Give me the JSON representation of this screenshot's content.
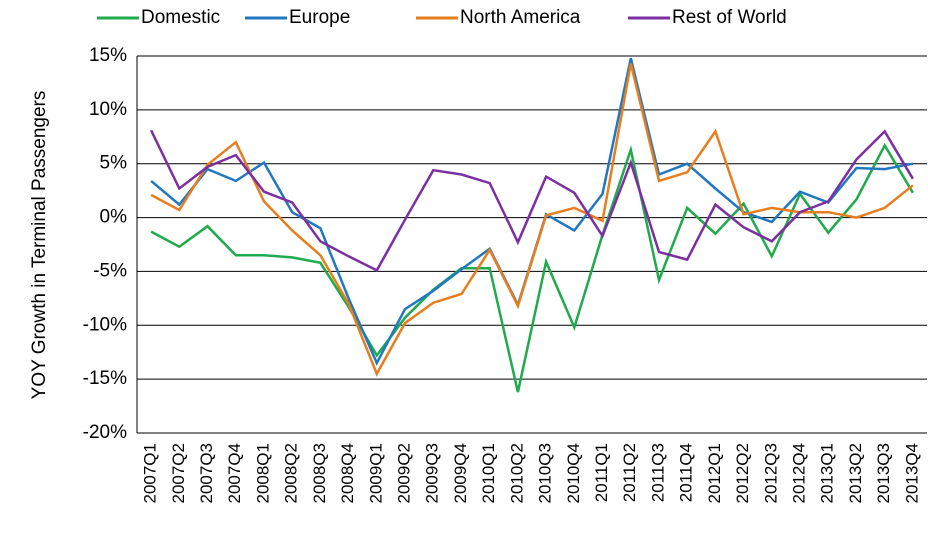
{
  "chart_data": {
    "type": "line",
    "y_label": "YOY Growth in Terminal Passengers",
    "categories": [
      "2007Q1",
      "2007Q2",
      "2007Q3",
      "2007Q4",
      "2008Q1",
      "2008Q2",
      "2008Q3",
      "2008Q4",
      "2009Q1",
      "2009Q2",
      "2009Q3",
      "2009Q4",
      "2010Q1",
      "2010Q2",
      "2010Q3",
      "2010Q4",
      "2011Q1",
      "2011Q2",
      "2011Q3",
      "2011Q4",
      "2012Q1",
      "2012Q2",
      "2012Q3",
      "2012Q4",
      "2013Q1",
      "2013Q2",
      "2013Q3",
      "2013Q4"
    ],
    "series": [
      {
        "name": "Domestic",
        "color": "#1faa4b",
        "values": [
          -1.3,
          -2.7,
          -0.8,
          -3.5,
          -3.5,
          -3.7,
          -4.2,
          -8.3,
          -12.8,
          -9.3,
          -6.7,
          -4.7,
          -4.7,
          -16.2,
          -4.1,
          -10.2,
          -1.6,
          6.3,
          -5.8,
          0.9,
          -1.5,
          1.3,
          -3.6,
          2.2,
          -1.4,
          1.7,
          6.7,
          2.3
        ]
      },
      {
        "name": "Europe",
        "color": "#1f78c1",
        "values": [
          3.4,
          1.2,
          4.5,
          3.4,
          5.1,
          0.5,
          -1.0,
          -7.5,
          -13.5,
          -8.5,
          -6.8,
          -4.8,
          -2.9,
          -8.1,
          0.3,
          -1.2,
          2.2,
          14.8,
          4.0,
          5.0,
          2.7,
          0.5,
          -0.4,
          2.4,
          1.4,
          4.6,
          4.5,
          5.0
        ]
      },
      {
        "name": "North America",
        "color": "#e87d1e",
        "values": [
          2.1,
          0.7,
          4.9,
          7.0,
          1.5,
          -1.2,
          -3.5,
          -8.0,
          -14.5,
          -9.8,
          -7.9,
          -7.1,
          -3.0,
          -8.2,
          0.2,
          0.9,
          -0.3,
          14.3,
          3.4,
          4.2,
          8.0,
          0.3,
          0.9,
          0.5,
          0.5,
          0.0,
          0.9,
          3.0
        ]
      },
      {
        "name": "Rest of World",
        "color": "#7b2fa0",
        "values": [
          8.1,
          2.7,
          4.7,
          5.8,
          2.4,
          1.4,
          -2.2,
          -3.6,
          -4.9,
          -0.2,
          4.4,
          4.0,
          3.2,
          -2.3,
          3.8,
          2.3,
          -1.7,
          5.1,
          -3.2,
          -3.9,
          1.2,
          -0.9,
          -2.2,
          0.5,
          1.5,
          5.4,
          8.0,
          3.6
        ]
      }
    ],
    "ylim": [
      -20,
      15
    ],
    "yticks": [
      {
        "value": -20,
        "label": "-20%"
      },
      {
        "value": -15,
        "label": "-15%"
      },
      {
        "value": -10,
        "label": "-10%"
      },
      {
        "value": -5,
        "label": "-5%"
      },
      {
        "value": 0,
        "label": "0%"
      },
      {
        "value": 5,
        "label": "5%"
      },
      {
        "value": 10,
        "label": "10%"
      },
      {
        "value": 15,
        "label": "15%"
      }
    ],
    "grid": true,
    "legend": "top"
  }
}
